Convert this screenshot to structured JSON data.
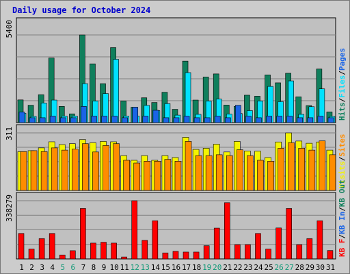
{
  "chart_data": {
    "type": "bar",
    "title": "Daily usage for October 2024",
    "colors": {
      "hits": "#0f7f5c",
      "files": "#00e1ff",
      "pages": "#1a64e6",
      "visits": "#f4f400",
      "sites": "#ff8c00",
      "kbf": "#ff0000",
      "weekend_label": "#119977",
      "weekday_label": "#000000"
    },
    "weekend_days": [
      5,
      6,
      12,
      13,
      19,
      20,
      26,
      27
    ],
    "days": [
      "1",
      "2",
      "3",
      "4",
      "5",
      "6",
      "7",
      "8",
      "9",
      "10",
      "11",
      "12",
      "13",
      "14",
      "15",
      "16",
      "17",
      "18",
      "19",
      "20",
      "21",
      "22",
      "23",
      "24",
      "25",
      "26",
      "27",
      "28",
      "29",
      "30",
      "31"
    ],
    "panels": [
      {
        "id": "hits-files-pages",
        "ymax_label": "5400",
        "ymax": 5400,
        "right_legend": [
          {
            "text": "Hits",
            "color_key": "hits"
          },
          {
            "text": "/",
            "color_key": "sep"
          },
          {
            "text": "Files",
            "color_key": "files"
          },
          {
            "text": "/",
            "color_key": "sep"
          },
          {
            "text": "Pages",
            "color_key": "pages"
          }
        ],
        "series": [
          {
            "name": "Hits",
            "color_key": "hits",
            "values": [
              1400,
              1070,
              1720,
              3980,
              1000,
              540,
              5400,
              3620,
              2400,
              4620,
              1330,
              950,
              1530,
              1240,
              1870,
              820,
              3790,
              1390,
              2810,
              3000,
              1080,
              1000,
              1690,
              1630,
              2940,
              2450,
              3040,
              1590,
              1050,
              3300,
              660
            ]
          },
          {
            "name": "Files",
            "color_key": "files",
            "values": [
              580,
              380,
              1210,
              1390,
              400,
              400,
              2400,
              1330,
              1790,
              3900,
              400,
              410,
              1060,
              740,
              1170,
              460,
              3080,
              510,
              1330,
              1450,
              530,
              560,
              740,
              1330,
              2230,
              1290,
              2570,
              510,
              980,
              2080,
              380
            ]
          },
          {
            "name": "Pages",
            "color_key": "pages",
            "values": [
              650,
              300,
              300,
              400,
              300,
              300,
              1000,
              400,
              400,
              400,
              300,
              950,
              400,
              760,
              300,
              300,
              400,
              300,
              300,
              400,
              300,
              1070,
              400,
              300,
              400,
              400,
              400,
              300,
              300,
              400,
              300
            ]
          }
        ]
      },
      {
        "id": "visits-sites",
        "ymax_label": "311",
        "ymax": 311,
        "right_legend": [
          {
            "text": "Visits",
            "color_key": "visits"
          },
          {
            "text": "/",
            "color_key": "sep"
          },
          {
            "text": "Sites",
            "color_key": "sites"
          }
        ],
        "series": [
          {
            "name": "Visits",
            "color_key": "visits",
            "values": [
              210,
              215,
              230,
              263,
              248,
              253,
              275,
              258,
              265,
              263,
              188,
              163,
              188,
              163,
              188,
              178,
              287,
              222,
              228,
              250,
              208,
              265,
              213,
              212,
              178,
              262,
              311,
              267,
              255,
              262,
              218
            ]
          },
          {
            "name": "Sites",
            "color_key": "sites",
            "values": [
              210,
              215,
              210,
              230,
              218,
              223,
              253,
              208,
              243,
              253,
              163,
              148,
              158,
              158,
              168,
              158,
              265,
              188,
              188,
              193,
              188,
              220,
              188,
              163,
              158,
              228,
              258,
              228,
              218,
              268,
              193
            ]
          }
        ]
      },
      {
        "id": "kbf",
        "ymax_label": "338279",
        "ymax": 338279,
        "right_legend": [
          {
            "text": "KB F",
            "color_key": "kbf"
          },
          {
            "text": "/",
            "color_key": "sep"
          },
          {
            "text": "KB In",
            "color_key": "pages"
          },
          {
            "text": "/",
            "color_key": "sep"
          },
          {
            "text": "KB Out",
            "color_key": "hits"
          }
        ],
        "series": [
          {
            "name": "KB F",
            "color_key": "kbf",
            "values": [
              148000,
              57500,
              118000,
              148000,
              23000,
              48000,
              293000,
              92000,
              97000,
              92000,
              11500,
              338279,
              108000,
              222000,
              35000,
              44000,
              40000,
              40000,
              77000,
              179000,
              327000,
              83000,
              83000,
              148000,
              57500,
              180000,
              293000,
              83000,
              118000,
              222000,
              49000
            ]
          }
        ]
      }
    ]
  }
}
